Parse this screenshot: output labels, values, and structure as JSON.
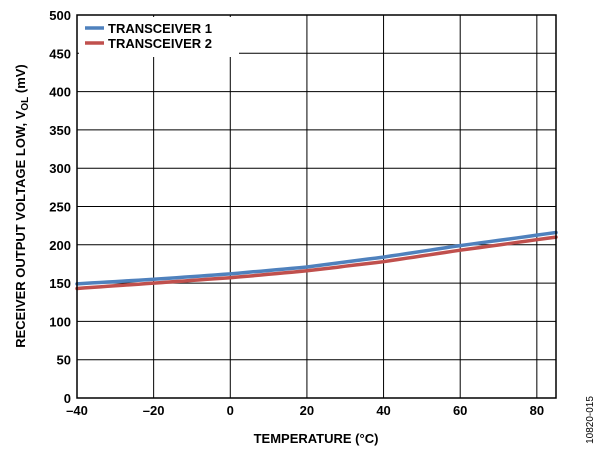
{
  "chart_data": {
    "type": "line",
    "xlabel": "TEMPERATURE (°C)",
    "ylabel_main": "RECEIVER OUTPUT VOLTAGE LOW, V",
    "ylabel_sub": "OL",
    "ylabel_unit": " (mV)",
    "xlim": [
      -40,
      85
    ],
    "ylim": [
      0,
      500
    ],
    "x_ticks": [
      -40,
      -20,
      0,
      20,
      40,
      60,
      80
    ],
    "x_tick_labels": [
      "–40",
      "–20",
      "0",
      "20",
      "40",
      "60",
      "80"
    ],
    "y_ticks": [
      0,
      50,
      100,
      150,
      200,
      250,
      300,
      350,
      400,
      450,
      500
    ],
    "y_tick_labels": [
      "0",
      "50",
      "100",
      "150",
      "200",
      "250",
      "300",
      "350",
      "400",
      "450",
      "500"
    ],
    "grid": true,
    "legend_position": "top-left",
    "series": [
      {
        "name": "TRANSCEIVER 1",
        "color": "#4f81bd",
        "x": [
          -40,
          -20,
          0,
          20,
          40,
          60,
          85
        ],
        "y": [
          149,
          155,
          162,
          171,
          184,
          199,
          216
        ]
      },
      {
        "name": "TRANSCEIVER 2",
        "color": "#c0504d",
        "x": [
          -40,
          -20,
          0,
          20,
          40,
          60,
          85
        ],
        "y": [
          143,
          150,
          157,
          166,
          178,
          193,
          210
        ]
      }
    ]
  },
  "figure_id": "10820-015"
}
